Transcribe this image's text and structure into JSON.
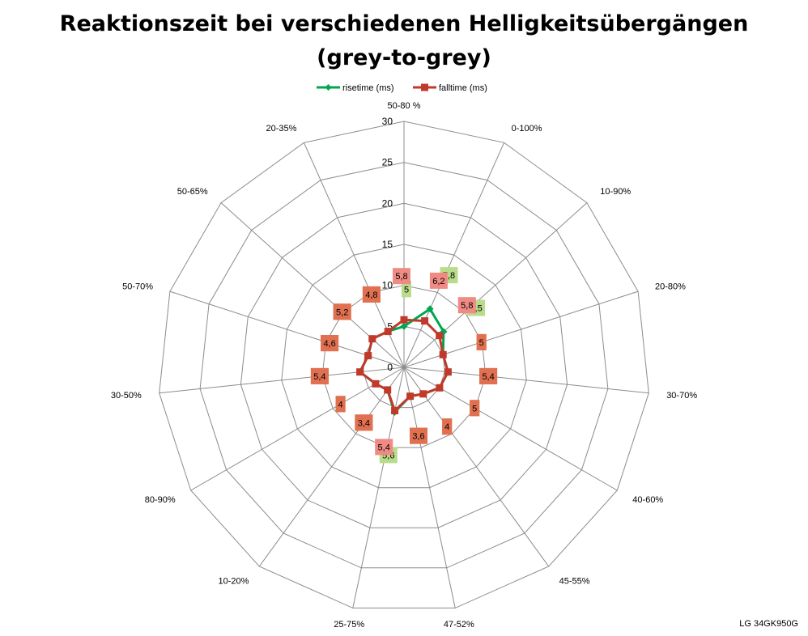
{
  "chart_data": {
    "type": "radar",
    "title_line1": "Reaktionszeit bei verschiedenen Helligkeitsübergängen",
    "title_line2": "(grey-to-grey)",
    "categories": [
      "50-80 %",
      "0-100%",
      "10-90%",
      "20-80%",
      "30-70%",
      "40-60%",
      "45-55%",
      "47-52%",
      "25-75%",
      "10-20%",
      "80-90%",
      "30-50%",
      "50-70%",
      "50-65%",
      "20-35%"
    ],
    "rlim": [
      0,
      30
    ],
    "ticks": [
      "0",
      "5",
      "10",
      "15",
      "20",
      "25",
      "30"
    ],
    "grid": true,
    "legend_position": "top",
    "series": [
      {
        "name": "risetime (ms)",
        "color": "#00a651",
        "label_bg": "#b9dc8a",
        "values": [
          5,
          7.8,
          6.5,
          5,
          5.4,
          5,
          4,
          3.6,
          5.6,
          3.4,
          4,
          5.4,
          4.6,
          5.2,
          4.8
        ]
      },
      {
        "name": "falltime (ms)",
        "color": "#c0392b",
        "label_bg": "#f08a84",
        "values": [
          5.8,
          6.2,
          5.8,
          5,
          5.4,
          5,
          4,
          3.6,
          5.4,
          3.4,
          4,
          5.4,
          4.6,
          5.2,
          4.8
        ]
      }
    ],
    "label_overlap_color": "#e07050"
  },
  "footnote": "LG 34GK950G"
}
